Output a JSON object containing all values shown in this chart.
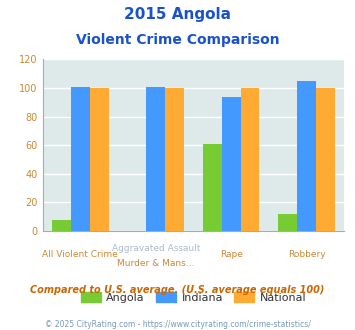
{
  "title_line1": "2015 Angola",
  "title_line2": "Violent Crime Comparison",
  "angola": [
    8,
    0,
    61,
    12
  ],
  "indiana": [
    101,
    101,
    94,
    105
  ],
  "national": [
    100,
    100,
    100,
    100
  ],
  "angola_color": "#77cc33",
  "indiana_color": "#4499ff",
  "national_color": "#ffaa33",
  "bg_plot": "#deeaea",
  "bg_fig": "#ffffff",
  "title_color": "#1a52cc",
  "xlabel_top_color": "#aabbcc",
  "xlabel_bot_color": "#cc8833",
  "ytick_color": "#cc8833",
  "ylim": [
    0,
    120
  ],
  "yticks": [
    0,
    20,
    40,
    60,
    80,
    100,
    120
  ],
  "top_labels": [
    "",
    "Aggravated Assault",
    "",
    ""
  ],
  "bottom_labels": [
    "All Violent Crime",
    "Murder & Mans...",
    "Rape",
    "Robbery"
  ],
  "note_text": "Compared to U.S. average. (U.S. average equals 100)",
  "note_color": "#cc6600",
  "footer_text": "© 2025 CityRating.com - https://www.cityrating.com/crime-statistics/",
  "footer_color": "#7799bb",
  "legend_labels": [
    "Angola",
    "Indiana",
    "National"
  ],
  "legend_text_color": "#333333"
}
